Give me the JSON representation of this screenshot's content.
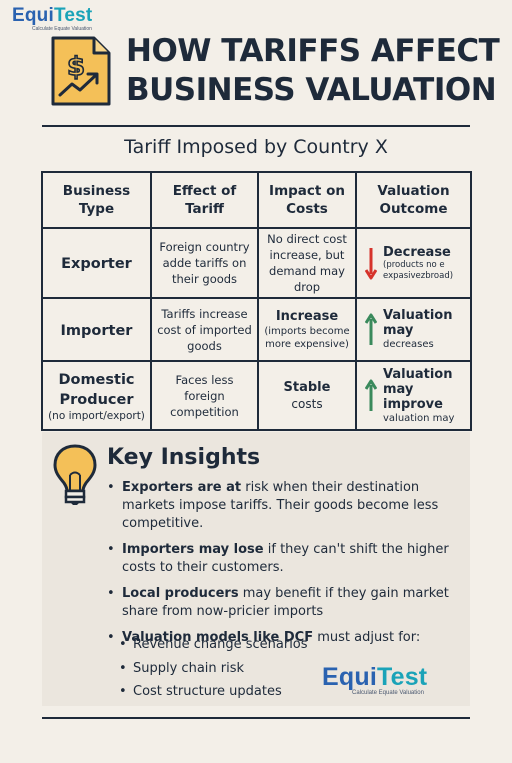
{
  "logo": {
    "brand_a": "Equi",
    "brand_b": "Test",
    "tagline": "Calculate Equate Valuation"
  },
  "title": {
    "line1": "HOW TARIFFS AFFECT",
    "line2": "BUSINESS VALUATION"
  },
  "subtitle": "Tariff Imposed by Country X",
  "table": {
    "headers": [
      "Business Type",
      "Effect of Tariff",
      "Impact on Costs",
      "Valuation Outcome"
    ],
    "rows": [
      {
        "type": "Exporter",
        "type_note": "",
        "effect": "Foreign country adde tariffs on their goods",
        "impact_main": "",
        "impact_sub": "No direct cost increase, but demand may drop",
        "outcome_main": "Decrease",
        "outcome_sub": "(products no e expasivezbroad)",
        "arrow": "down"
      },
      {
        "type": "Importer",
        "type_note": "",
        "effect": "Tariffs increase cost of imported goods",
        "impact_main": "Increase",
        "impact_sub": "(imports become more expensive)",
        "outcome_main": "Valuation may",
        "outcome_sub": "decreases",
        "arrow": "up"
      },
      {
        "type": "Domestic Producer",
        "type_note": "(no import/export)",
        "effect": "Faces less foreign competition",
        "impact_main": "Stable",
        "impact_sub": "costs",
        "outcome_main": "Valuation may improve",
        "outcome_sub": "valuation may",
        "arrow": "up"
      }
    ]
  },
  "insights": {
    "title": "Key Insights",
    "items": [
      {
        "bold": "Exporters are at",
        "text": " risk when their destination markets impose tariffs. Their goods become less competitive."
      },
      {
        "bold": "Importers may lose",
        "text": " if they can't shift the higher costs to their customers."
      },
      {
        "bold": "Local producers",
        "text": " may benefit if they gain market share from now-pricier imports"
      },
      {
        "bold": "Valuation models like DCF",
        "text": " must adjust for:"
      }
    ],
    "subitems": [
      "Revenue change scenarios",
      "Supply chain risk",
      "Cost structure updates"
    ]
  },
  "colors": {
    "down_arrow": "#d6332b",
    "up_arrow": "#3a8a5c",
    "icon_fill": "#f4c058",
    "brand": "#2a62b0",
    "brand_accent": "#1aa3b8",
    "text": "#1e2a3a"
  }
}
